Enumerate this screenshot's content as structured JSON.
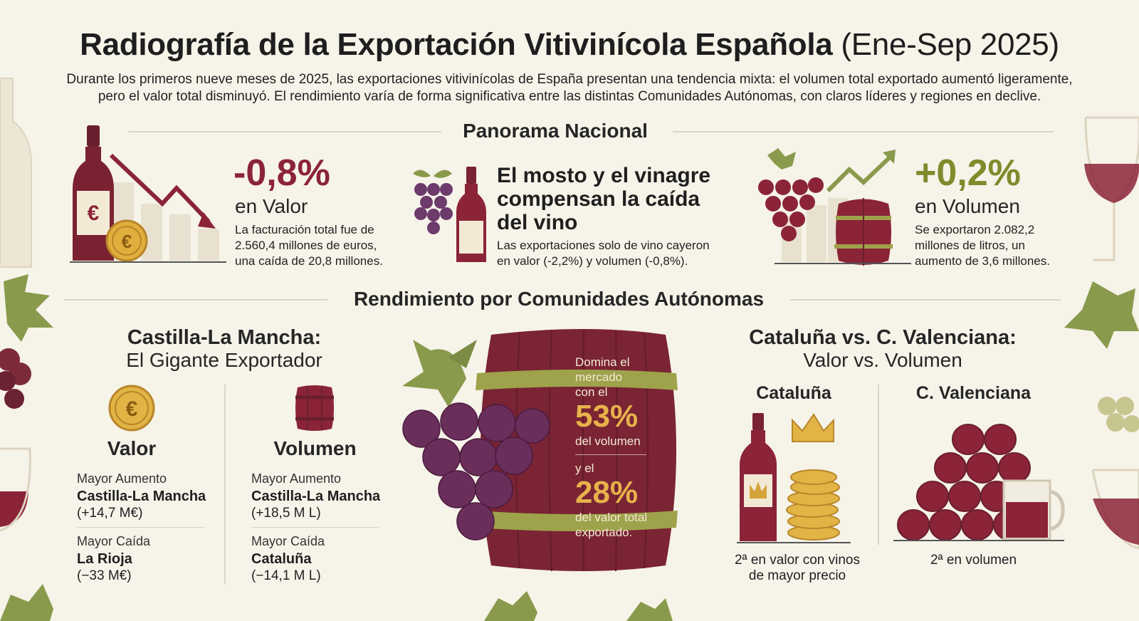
{
  "header": {
    "title_bold": "Radiografía de la Exportación Vitivinícola Española",
    "title_light": "(Ene-Sep 2025)",
    "intro_line1": "Durante los primeros nueve meses de 2025, las exportaciones vitivinícolas de España presentan una tendencia mixta: el volumen total exportado aumentó ligeramente,",
    "intro_line2": "pero el valor total disminuyó. El rendimiento varía de forma significativa entre las distintas Comunidades Autónomas, con claros líderes y regiones en declive."
  },
  "national": {
    "title": "Panorama Nacional",
    "value_card": {
      "percent": "-0,8%",
      "label": "en Valor",
      "desc1": "La facturación total fue de",
      "desc2": "2.560,4 millones de euros,",
      "desc3": "una caída de 20,8 millones."
    },
    "middle_card": {
      "heading1": "El mosto y el vinagre",
      "heading2": "compensan la caída",
      "heading3": "del vino",
      "desc1": "Las exportaciones solo de vino cayeron",
      "desc2": "en valor (-2,2%) y volumen (-0,8%)."
    },
    "volume_card": {
      "percent": "+0,2%",
      "label": "en Volumen",
      "desc1": "Se exportaron 2.082,2",
      "desc2": "millones de litros, un",
      "desc3": "aumento de 3,6 millones."
    }
  },
  "regions": {
    "title": "Rendimiento por Comunidades Autónomas",
    "clm": {
      "title": "Castilla-La Mancha:",
      "subtitle": "El Gigante Exportador",
      "valor": {
        "head": "Valor",
        "up_label": "Mayor Aumento",
        "up_region": "Castilla-La Mancha",
        "up_value": "(+14,7 M€)",
        "down_label": "Mayor Caída",
        "down_region": "La Rioja",
        "down_value": "(−33 M€)"
      },
      "volumen": {
        "head": "Volumen",
        "up_label": "Mayor Aumento",
        "up_region": "Castilla-La Mancha",
        "up_value": "(+18,5 M L)",
        "down_label": "Mayor Caída",
        "down_region": "Cataluña",
        "down_value": "(−14,1 M L)"
      }
    },
    "barrel": {
      "line1": "Domina el",
      "line2": "mercado",
      "line3": "con el",
      "pct_volume": "53%",
      "line4": "del volumen",
      "line5": "y el",
      "pct_value": "28%",
      "line6": "del valor total",
      "line7": "exportado."
    },
    "comparison": {
      "title": "Cataluña vs. C. Valenciana:",
      "subtitle": "Valor vs. Volumen",
      "cataluna": {
        "name": "Cataluña",
        "note1": "2ª en valor con vinos",
        "note2": "de mayor precio"
      },
      "valenciana": {
        "name": "C. Valenciana",
        "note1": "2ª en volumen"
      }
    }
  },
  "colors": {
    "wine": "#8b2437",
    "olive": "#7f8b2c",
    "gold": "#e2b445",
    "cream": "#f6f3e9"
  }
}
